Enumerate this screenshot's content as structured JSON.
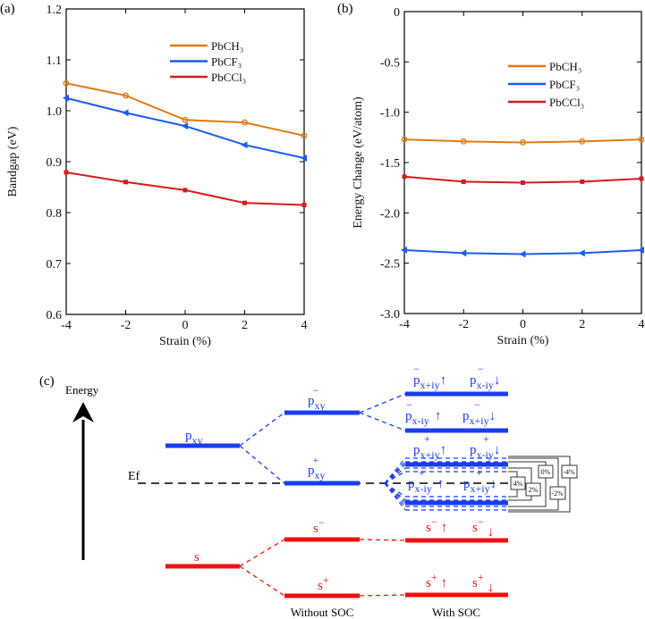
{
  "chart_data": [
    {
      "type": "line",
      "panel_label": "(a)",
      "xlabel": "Strain (%)",
      "ylabel": "Bandgap (eV)",
      "x": [
        -4,
        -2,
        0,
        2,
        4
      ],
      "xlim": [
        -4,
        4
      ],
      "ylim": [
        0.6,
        1.2
      ],
      "xticks": [
        "-4",
        "-2",
        "0",
        "2",
        "4"
      ],
      "yticks": [
        "0.6",
        "0.7",
        "0.8",
        "0.9",
        "1.0",
        "1.1",
        "1.2"
      ],
      "legend_position": "top-right",
      "series": [
        {
          "name": "PbCH₃",
          "color": "#e07b14",
          "marker": "circle",
          "values": [
            1.054,
            1.03,
            0.982,
            0.977,
            0.951
          ]
        },
        {
          "name": "PbCF₃",
          "color": "#1a5cf5",
          "marker": "triangle-left",
          "values": [
            1.025,
            0.996,
            0.97,
            0.933,
            0.907
          ]
        },
        {
          "name": "PbCCl₃",
          "color": "#d41c1c",
          "marker": "square",
          "values": [
            0.879,
            0.86,
            0.844,
            0.819,
            0.815
          ]
        }
      ]
    },
    {
      "type": "line",
      "panel_label": "(b)",
      "xlabel": "Strain (%)",
      "ylabel": "Energy Change (eV/atom)",
      "x": [
        -4,
        -2,
        0,
        2,
        4
      ],
      "xlim": [
        -4,
        4
      ],
      "ylim": [
        -3.0,
        0
      ],
      "xticks": [
        "-4",
        "-2",
        "0",
        "2",
        "4"
      ],
      "yticks": [
        "-3.0",
        "-2.5",
        "-2.0",
        "-1.5",
        "-1.0",
        "-0.5",
        "0"
      ],
      "legend_position": "top-right",
      "series": [
        {
          "name": "PbCH₃",
          "color": "#e07b14",
          "marker": "circle",
          "values": [
            -1.27,
            -1.29,
            -1.3,
            -1.29,
            -1.27
          ]
        },
        {
          "name": "PbCF₃",
          "color": "#1a5cf5",
          "marker": "triangle-left",
          "values": [
            -2.37,
            -2.4,
            -2.41,
            -2.4,
            -2.37
          ]
        },
        {
          "name": "PbCCl₃",
          "color": "#d41c1c",
          "marker": "square",
          "values": [
            -1.64,
            -1.69,
            -1.7,
            -1.69,
            -1.66
          ]
        }
      ]
    }
  ],
  "diagram": {
    "panel_label": "(c)",
    "energy_label": "Energy",
    "ef_label": "Ef",
    "without_soc": "Without SOC",
    "with_soc": "With SOC",
    "p": "p",
    "s": "s",
    "xy": "xy",
    "minus": "−",
    "plus": "+",
    "xpiy": "x+iy",
    "xmiy": "x-iy",
    "up": "↑",
    "down": "↓",
    "strain_boxes": [
      "4%",
      "2%",
      "0%",
      "-2%",
      "-4%"
    ]
  }
}
